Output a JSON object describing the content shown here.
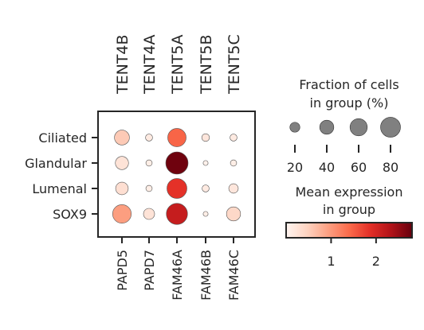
{
  "chart_data": {
    "type": "dotplot",
    "genes_top": [
      "TENT4B",
      "TENT4A",
      "TENT5A",
      "TENT5B",
      "TENT5C"
    ],
    "genes_bottom": [
      "PAPD5",
      "PAPD7",
      "FAM46A",
      "FAM46B",
      "FAM46C"
    ],
    "groups": [
      "Ciliated",
      "Glandular",
      "Lumenal",
      "SOX9"
    ],
    "fraction": [
      [
        45,
        10,
        68,
        12,
        10
      ],
      [
        35,
        8,
        100,
        5,
        8
      ],
      [
        32,
        8,
        80,
        10,
        18
      ],
      [
        70,
        25,
        90,
        5,
        40
      ]
    ],
    "mean_expression": [
      [
        0.55,
        0.15,
        1.45,
        0.2,
        0.15
      ],
      [
        0.25,
        0.1,
        2.75,
        0.05,
        0.1
      ],
      [
        0.3,
        0.1,
        1.85,
        0.15,
        0.2
      ],
      [
        0.95,
        0.25,
        2.15,
        0.1,
        0.4
      ]
    ],
    "size_legend": {
      "title_line1": "Fraction of cells",
      "title_line2": "in group (%)",
      "values": [
        20,
        40,
        60,
        80
      ],
      "labels": [
        "20",
        "40",
        "60",
        "80"
      ]
    },
    "color_legend": {
      "title_line1": "Mean expression",
      "title_line2": "in group",
      "range": [
        0,
        2.8
      ],
      "ticks": [
        1,
        2
      ],
      "tick_labels": [
        "1",
        "2"
      ],
      "colormap": "Reds",
      "stops": [
        "#fff5f0",
        "#fdd3c1",
        "#fca082",
        "#fb6b4b",
        "#e32f27",
        "#b11218",
        "#67000d"
      ]
    }
  }
}
